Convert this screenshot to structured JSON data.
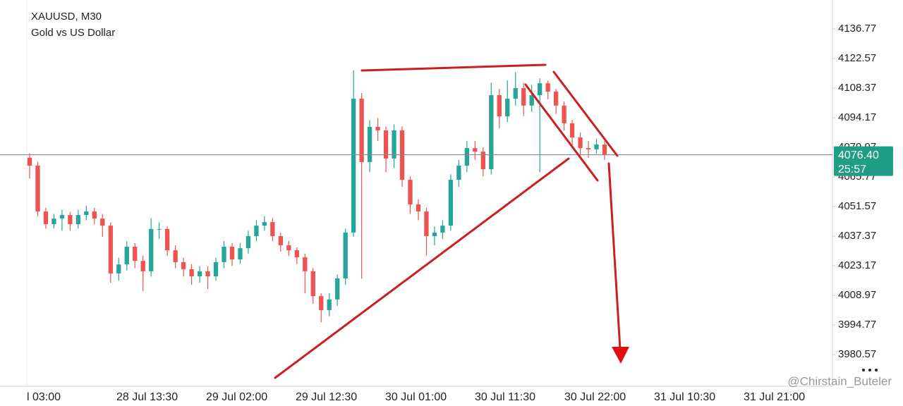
{
  "chart_data": {
    "type": "candlestick",
    "title": "XAUUSD, M30",
    "subtitle": "Gold vs US Dollar",
    "up_color": "#26a69a",
    "down_color": "#ef5350",
    "ylim": [
      3965.37,
      4150.63
    ],
    "yticks": [
      4136.77,
      4122.57,
      4108.37,
      4094.17,
      4079.97,
      4065.77,
      4051.57,
      4037.37,
      4023.17,
      4008.97,
      3994.77,
      3980.57
    ],
    "x_tick_labels": [
      "l 03:00",
      "28 Jul 13:30",
      "29 Jul 02:00",
      "29 Jul 12:30",
      "30 Jul 01:00",
      "30 Jul 11:30",
      "30 Jul 22:00",
      "31 Jul 10:30",
      "31 Jul 21:00"
    ],
    "last_price": {
      "value": 4076.4,
      "label": "4076.40"
    },
    "countdown": "25:57",
    "watermark": "@Chirstain_Buteler",
    "open": [
      4075,
      4071.2,
      4049.2,
      4043.1,
      4045.8,
      4047.5,
      4043.1,
      4047.5,
      4049.2,
      4045.8,
      4042.4,
      4019.5,
      4023.8,
      4032.3,
      4025.5,
      4020.5,
      4040.8,
      4040.8,
      4030.6,
      4024.9,
      4021.5,
      4018.1,
      4020.5,
      4018.1,
      4024.9,
      4032.3,
      4026.2,
      4031.6,
      4037.4,
      4042.4,
      4044.1,
      4037.4,
      4033.0,
      4030.6,
      4027.2,
      4020.5,
      4008.6,
      4001.9,
      4007.0,
      4017.1,
      4039.1,
      4103.3,
      4072.9,
      4089.8,
      4088.1,
      4074.6,
      4088.1,
      4064.4,
      4052.6,
      4049.2,
      4037.4,
      4039.1,
      4042.4,
      4064.4,
      4071.2,
      4079.6,
      4077.9,
      4069.5,
      4105.0,
      4094.8,
      4103.3,
      4108.4,
      4100,
      4105,
      4110.7,
      4106.7,
      4100,
      4091.5,
      4084.7,
      4079.6,
      4079,
      4081.3
    ],
    "close": [
      4071.2,
      4049.2,
      4043.1,
      4045.8,
      4047.5,
      4043.1,
      4047.5,
      4049.2,
      4045.8,
      4042.4,
      4019.5,
      4023.8,
      4032.3,
      4025.5,
      4020.5,
      4040.8,
      4040.8,
      4030.6,
      4024.9,
      4021.5,
      4018.1,
      4020.5,
      4018.1,
      4024.9,
      4032.3,
      4026.2,
      4031.6,
      4037.4,
      4042.4,
      4044.1,
      4037.4,
      4033.0,
      4030.6,
      4027.2,
      4020.5,
      4008.6,
      4001.9,
      4007.0,
      4017.1,
      4039.1,
      4103.3,
      4072.9,
      4089.8,
      4088.1,
      4074.6,
      4088.1,
      4064.4,
      4052.6,
      4049.2,
      4037.4,
      4039.1,
      4042.4,
      4064.4,
      4071.2,
      4079.6,
      4077.9,
      4069.5,
      4105.0,
      4094.8,
      4103.3,
      4108.4,
      4100,
      4105,
      4110.7,
      4106.7,
      4100,
      4091.5,
      4084.7,
      4079.6,
      4079,
      4081.3,
      4076.4
    ],
    "high": [
      4077,
      4073,
      4051,
      4048,
      4050,
      4049,
      4050,
      4052,
      4051,
      4048,
      4044,
      4027,
      4035,
      4034,
      4028,
      4046,
      4044,
      4042,
      4033,
      4027,
      4024,
      4023,
      4023,
      4027,
      4035,
      4034,
      4034,
      4040,
      4045,
      4047,
      4046,
      4039,
      4035,
      4032,
      4029,
      4022,
      4010,
      4010,
      4019,
      4041,
      4117,
      4106,
      4093,
      4094,
      4090,
      4091,
      4090,
      4066,
      4055,
      4051,
      4042,
      4045,
      4067,
      4074,
      4083,
      4083,
      4080,
      4111,
      4108,
      4112,
      4116,
      4111,
      4110,
      4113,
      4112,
      4108,
      4102,
      4093,
      4087,
      4083,
      4084,
      4083
    ],
    "low": [
      4065,
      4047,
      4041,
      4041,
      4040,
      4040,
      4041,
      4045,
      4043,
      4037,
      4015,
      4016,
      4021,
      4022,
      4011,
      4018,
      4036,
      4028,
      4022,
      4018,
      4014,
      4015,
      4012,
      4016,
      4022,
      4023,
      4024,
      4029,
      4035,
      4040,
      4035,
      4030,
      4028,
      4024,
      4010,
      4005,
      3996,
      3999,
      4004,
      4014,
      4037,
      4017,
      4068,
      4083,
      4068,
      4070,
      4061,
      4048,
      4045,
      4028,
      4033,
      4036,
      4040,
      4061,
      4068,
      4074,
      4066,
      4067,
      4089,
      4092,
      4100,
      4095,
      4097,
      4068,
      4103,
      4096,
      4088,
      4081,
      4076,
      4075,
      4077,
      4074
    ]
  }
}
